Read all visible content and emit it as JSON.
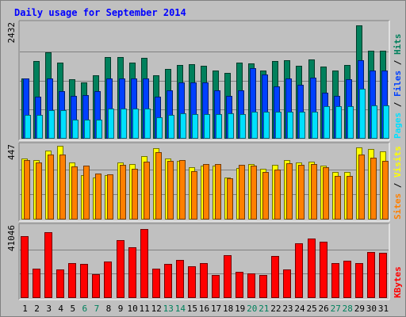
{
  "chart_data": [
    {
      "type": "bar",
      "title": "Daily usage for September 2014",
      "ylabel_max": "2432",
      "legend": [
        {
          "name": "Pages",
          "color": "#00E0FF"
        },
        {
          "name": "Files",
          "color": "#0040FF"
        },
        {
          "name": "Hits",
          "color": "#00805C"
        }
      ],
      "legend_separator": " / ",
      "ylim": [
        0,
        2432
      ],
      "categories": [
        "1",
        "2",
        "3",
        "4",
        "5",
        "6",
        "7",
        "8",
        "9",
        "10",
        "11",
        "12",
        "13",
        "14",
        "15",
        "16",
        "17",
        "18",
        "19",
        "20",
        "21",
        "22",
        "23",
        "24",
        "25",
        "26",
        "27",
        "28",
        "29",
        "30",
        "31"
      ],
      "weekend_days": [
        "6",
        "7",
        "13",
        "14",
        "20",
        "21",
        "27",
        "28"
      ],
      "series": [
        {
          "name": "Hits",
          "color": "#00805C",
          "values": [
            1260,
            1620,
            1810,
            1580,
            1240,
            1170,
            1320,
            1710,
            1710,
            1580,
            1690,
            1330,
            1450,
            1540,
            1560,
            1530,
            1430,
            1370,
            1590,
            1570,
            1430,
            1620,
            1640,
            1530,
            1650,
            1510,
            1430,
            1540,
            2370,
            1840,
            1840
          ]
        },
        {
          "name": "Files",
          "color": "#0040FF",
          "values": [
            1260,
            875,
            1260,
            1000,
            900,
            910,
            1000,
            1260,
            1260,
            1260,
            1260,
            880,
            1010,
            1170,
            1170,
            1170,
            1010,
            890,
            1010,
            1470,
            1340,
            1100,
            1260,
            1130,
            1270,
            960,
            900,
            1240,
            1640,
            1430,
            1430
          ]
        },
        {
          "name": "Pages",
          "color": "#00E0FF",
          "values": [
            500,
            500,
            600,
            600,
            400,
            400,
            400,
            630,
            630,
            630,
            630,
            440,
            500,
            530,
            520,
            520,
            520,
            530,
            520,
            570,
            560,
            560,
            560,
            570,
            570,
            680,
            680,
            680,
            1040,
            700,
            700
          ]
        }
      ]
    },
    {
      "type": "bar",
      "ylabel_max": "447",
      "legend": [
        {
          "name": "Sites",
          "color": "#FF8000"
        },
        {
          "name": "Visits",
          "color": "#FFFF00"
        }
      ],
      "legend_separator": " / ",
      "ylim": [
        0,
        447
      ],
      "categories": [
        "1",
        "2",
        "3",
        "4",
        "5",
        "6",
        "7",
        "8",
        "9",
        "10",
        "11",
        "12",
        "13",
        "14",
        "15",
        "16",
        "17",
        "18",
        "19",
        "20",
        "21",
        "22",
        "23",
        "24",
        "25",
        "26",
        "27",
        "28",
        "29",
        "30",
        "31"
      ],
      "series": [
        {
          "name": "Visits",
          "color": "#FFFF00",
          "values": [
            360,
            355,
            410,
            438,
            340,
            265,
            250,
            265,
            340,
            330,
            375,
            425,
            360,
            350,
            310,
            320,
            320,
            250,
            305,
            330,
            300,
            325,
            355,
            340,
            345,
            320,
            280,
            280,
            430,
            420,
            405
          ]
        },
        {
          "name": "Sites",
          "color": "#FF8000",
          "values": [
            355,
            340,
            385,
            385,
            315,
            320,
            275,
            270,
            325,
            300,
            345,
            400,
            350,
            355,
            285,
            330,
            330,
            245,
            325,
            320,
            280,
            295,
            335,
            325,
            330,
            310,
            260,
            260,
            385,
            365,
            350
          ]
        }
      ]
    },
    {
      "type": "bar",
      "ylabel_max": "41046",
      "legend": [
        {
          "name": "KBytes",
          "color": "#FF0000"
        }
      ],
      "legend_separator": "",
      "ylim": [
        0,
        41046
      ],
      "categories": [
        "1",
        "2",
        "3",
        "4",
        "5",
        "6",
        "7",
        "8",
        "9",
        "10",
        "11",
        "12",
        "13",
        "14",
        "15",
        "16",
        "17",
        "18",
        "19",
        "20",
        "21",
        "22",
        "23",
        "24",
        "25",
        "26",
        "27",
        "28",
        "29",
        "30",
        "31"
      ],
      "series": [
        {
          "name": "KBytes",
          "color": "#FF0000",
          "values": [
            35000,
            16500,
            37000,
            16000,
            19500,
            19200,
            13500,
            20500,
            32500,
            28500,
            39000,
            16500,
            19000,
            21500,
            18000,
            19500,
            13000,
            24000,
            14500,
            14000,
            13000,
            23500,
            16000,
            31000,
            33500,
            31500,
            19500,
            21000,
            19500,
            26000,
            25500
          ]
        }
      ]
    }
  ]
}
